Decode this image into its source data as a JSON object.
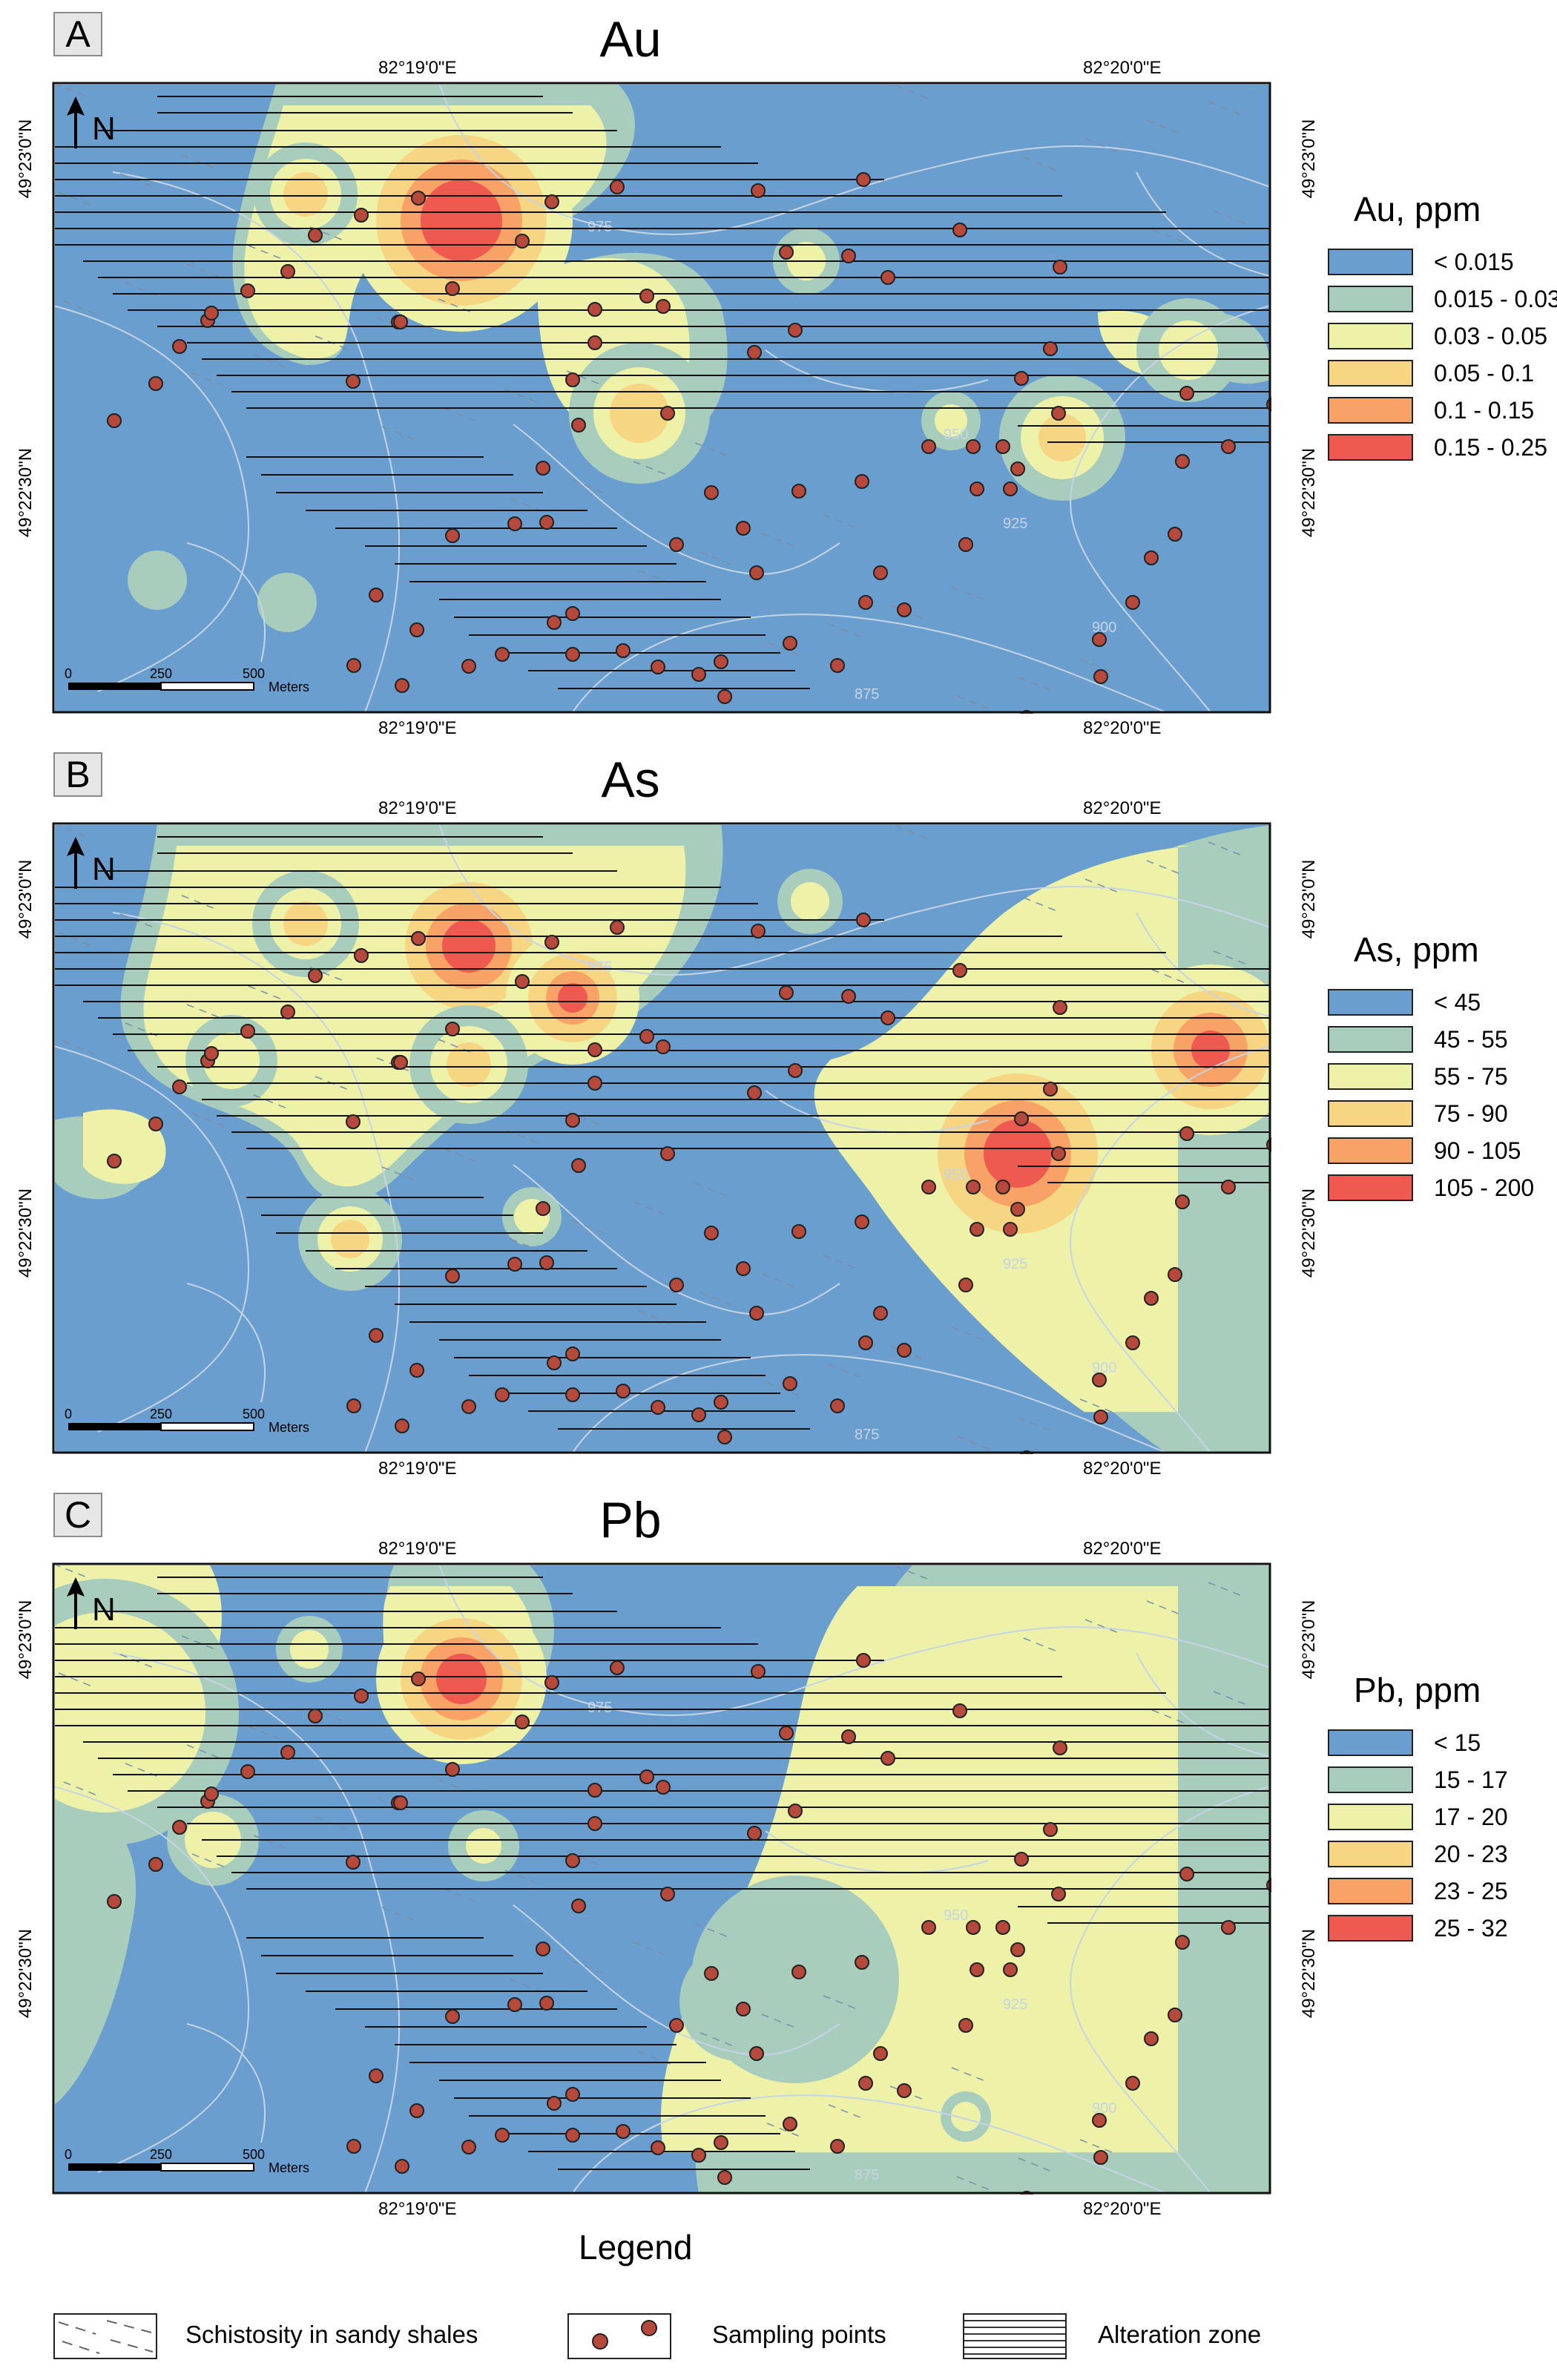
{
  "panels": [
    {
      "id": "A",
      "letter": "A",
      "title": "Au",
      "legend_title": "Au, ppm",
      "classes": [
        {
          "label": "< 0.015",
          "color": "#6a9ecf"
        },
        {
          "label": "0.015 - 0.03",
          "color": "#a9cdbd"
        },
        {
          "label": "0.03 - 0.05",
          "color": "#eef2a8"
        },
        {
          "label": "0.05 - 0.1",
          "color": "#f7d683"
        },
        {
          "label": "0.1 - 0.15",
          "color": "#f8a268"
        },
        {
          "label": "0.15 - 0.25",
          "color": "#ee5a50"
        }
      ]
    },
    {
      "id": "B",
      "letter": "B",
      "title": "As",
      "legend_title": "As, ppm",
      "classes": [
        {
          "label": "< 45",
          "color": "#6a9ecf"
        },
        {
          "label": "45 - 55",
          "color": "#a9cdbd"
        },
        {
          "label": "55 - 75",
          "color": "#eef2a8"
        },
        {
          "label": "75 - 90",
          "color": "#f7d683"
        },
        {
          "label": "90 - 105",
          "color": "#f8a268"
        },
        {
          "label": "105 - 200",
          "color": "#ee5a50"
        }
      ]
    },
    {
      "id": "C",
      "letter": "C",
      "title": "Pb",
      "legend_title": "Pb, ppm",
      "classes": [
        {
          "label": "< 15",
          "color": "#6a9ecf"
        },
        {
          "label": "15 - 17",
          "color": "#a9cdbd"
        },
        {
          "label": "17 - 20",
          "color": "#eef2a8"
        },
        {
          "label": "20 - 23",
          "color": "#f7d683"
        },
        {
          "label": "23 - 25",
          "color": "#f8a268"
        },
        {
          "label": "25 - 32",
          "color": "#ee5a50"
        }
      ]
    }
  ],
  "graticule": {
    "lon_left": "82°19'0\"E",
    "lon_right": "82°20'0\"E",
    "lat_top": "49°23'0\"N",
    "lat_bottom": "49°22'30\"N"
  },
  "north_label": "N",
  "scale_bar": {
    "ticks": [
      "0",
      "250",
      "500"
    ],
    "unit": "Meters"
  },
  "contour_labels": [
    "875",
    "900",
    "925",
    "950",
    "975"
  ],
  "legend": {
    "title": "Legend",
    "items": [
      {
        "label": "Schistosity in sandy shales"
      },
      {
        "label": "Sampling points"
      },
      {
        "label": "Alteration zone"
      }
    ]
  },
  "colors": {
    "base": "#6a9ecf",
    "point_fill": "#b5493b",
    "contour": "#c6d4e4"
  }
}
